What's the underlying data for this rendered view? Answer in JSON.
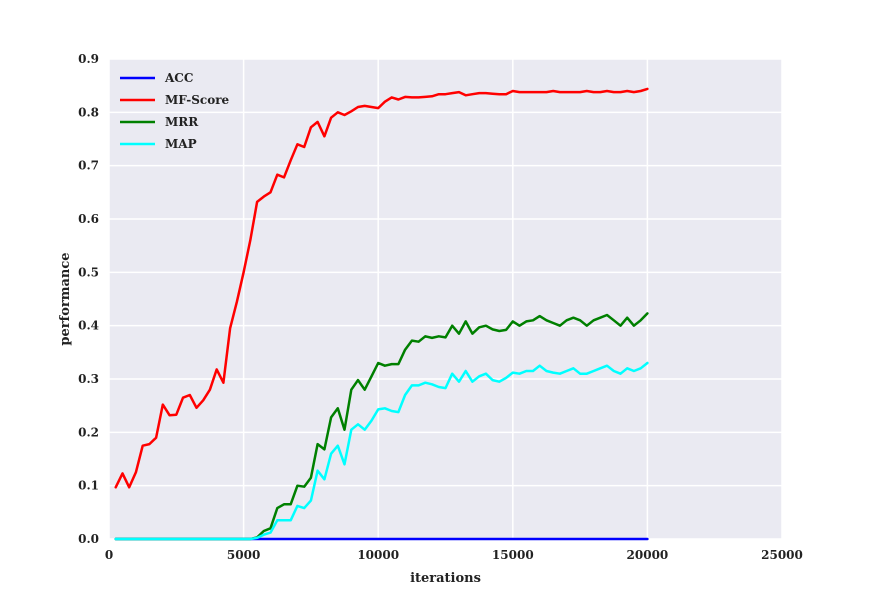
{
  "chart_data": {
    "type": "line",
    "xlabel": "iterations",
    "ylabel": "performance",
    "xlim": [
      0,
      25000
    ],
    "ylim": [
      0.0,
      0.9
    ],
    "x_ticks": [
      "0",
      "5000",
      "10000",
      "15000",
      "20000",
      "25000"
    ],
    "y_ticks": [
      "0.0",
      "0.1",
      "0.2",
      "0.3",
      "0.4",
      "0.5",
      "0.6",
      "0.7",
      "0.8",
      "0.9"
    ],
    "grid": true,
    "legend_position": "top-left",
    "x": [
      250,
      500,
      750,
      1000,
      1250,
      1500,
      1750,
      2000,
      2250,
      2500,
      2750,
      3000,
      3250,
      3500,
      3750,
      4000,
      4250,
      4500,
      4750,
      5000,
      5250,
      5500,
      5750,
      6000,
      6250,
      6500,
      6750,
      7000,
      7250,
      7500,
      7750,
      8000,
      8250,
      8500,
      8750,
      9000,
      9250,
      9500,
      9750,
      10000,
      10250,
      10500,
      10750,
      11000,
      11250,
      11500,
      11750,
      12000,
      12250,
      12500,
      12750,
      13000,
      13250,
      13500,
      13750,
      14000,
      14250,
      14500,
      14750,
      15000,
      15250,
      15500,
      15750,
      16000,
      16250,
      16500,
      16750,
      17000,
      17250,
      17500,
      17750,
      18000,
      18250,
      18500,
      18750,
      19000,
      19250,
      19500,
      19750,
      20000
    ],
    "series": [
      {
        "name": "ACC",
        "color": "#0000ff",
        "values": [
          0,
          0,
          0,
          0,
          0,
          0,
          0,
          0,
          0,
          0,
          0,
          0,
          0,
          0,
          0,
          0,
          0,
          0,
          0,
          0,
          0,
          0,
          0,
          0,
          0,
          0,
          0,
          0,
          0,
          0,
          0,
          0,
          0,
          0,
          0,
          0,
          0,
          0,
          0,
          0,
          0,
          0,
          0,
          0,
          0,
          0,
          0,
          0,
          0,
          0,
          0,
          0,
          0,
          0,
          0,
          0,
          0,
          0,
          0,
          0,
          0,
          0,
          0,
          0,
          0,
          0,
          0,
          0,
          0,
          0,
          0,
          0,
          0,
          0,
          0,
          0,
          0,
          0,
          0,
          0
        ]
      },
      {
        "name": "MF-Score",
        "color": "#ff0000",
        "values": [
          0.097,
          0.123,
          0.097,
          0.125,
          0.175,
          0.178,
          0.19,
          0.252,
          0.232,
          0.233,
          0.265,
          0.27,
          0.246,
          0.26,
          0.28,
          0.318,
          0.293,
          0.395,
          0.445,
          0.5,
          0.56,
          0.632,
          0.642,
          0.65,
          0.683,
          0.678,
          0.71,
          0.74,
          0.735,
          0.772,
          0.782,
          0.755,
          0.79,
          0.8,
          0.795,
          0.802,
          0.81,
          0.812,
          0.81,
          0.808,
          0.82,
          0.828,
          0.824,
          0.829,
          0.828,
          0.828,
          0.829,
          0.83,
          0.834,
          0.834,
          0.836,
          0.838,
          0.832,
          0.834,
          0.836,
          0.836,
          0.835,
          0.834,
          0.834,
          0.84,
          0.838,
          0.838,
          0.838,
          0.838,
          0.838,
          0.84,
          0.838,
          0.838,
          0.838,
          0.838,
          0.84,
          0.838,
          0.838,
          0.84,
          0.838,
          0.838,
          0.84,
          0.838,
          0.84,
          0.844
        ]
      },
      {
        "name": "MRR",
        "color": "#008000",
        "values": [
          0,
          0,
          0,
          0,
          0,
          0,
          0,
          0,
          0,
          0,
          0,
          0,
          0,
          0,
          0,
          0,
          0,
          0,
          0,
          0,
          0,
          0.003,
          0.015,
          0.02,
          0.058,
          0.065,
          0.065,
          0.1,
          0.098,
          0.115,
          0.178,
          0.168,
          0.228,
          0.245,
          0.205,
          0.28,
          0.298,
          0.28,
          0.305,
          0.33,
          0.325,
          0.328,
          0.328,
          0.355,
          0.372,
          0.37,
          0.38,
          0.377,
          0.38,
          0.378,
          0.4,
          0.385,
          0.408,
          0.385,
          0.397,
          0.4,
          0.393,
          0.39,
          0.392,
          0.408,
          0.4,
          0.408,
          0.41,
          0.418,
          0.41,
          0.405,
          0.4,
          0.41,
          0.415,
          0.41,
          0.4,
          0.41,
          0.415,
          0.42,
          0.41,
          0.4,
          0.415,
          0.4,
          0.41,
          0.423
        ]
      },
      {
        "name": "MAP",
        "color": "#00ffff",
        "values": [
          0,
          0,
          0,
          0,
          0,
          0,
          0,
          0,
          0,
          0,
          0,
          0,
          0,
          0,
          0,
          0,
          0,
          0,
          0,
          0,
          0,
          0.002,
          0.008,
          0.012,
          0.035,
          0.035,
          0.035,
          0.062,
          0.058,
          0.072,
          0.128,
          0.112,
          0.16,
          0.175,
          0.14,
          0.205,
          0.215,
          0.205,
          0.222,
          0.243,
          0.245,
          0.24,
          0.238,
          0.27,
          0.288,
          0.288,
          0.293,
          0.29,
          0.285,
          0.283,
          0.31,
          0.295,
          0.315,
          0.295,
          0.305,
          0.31,
          0.298,
          0.295,
          0.302,
          0.312,
          0.31,
          0.315,
          0.315,
          0.325,
          0.315,
          0.312,
          0.31,
          0.315,
          0.32,
          0.31,
          0.31,
          0.315,
          0.32,
          0.325,
          0.315,
          0.31,
          0.32,
          0.315,
          0.32,
          0.33
        ]
      }
    ]
  }
}
